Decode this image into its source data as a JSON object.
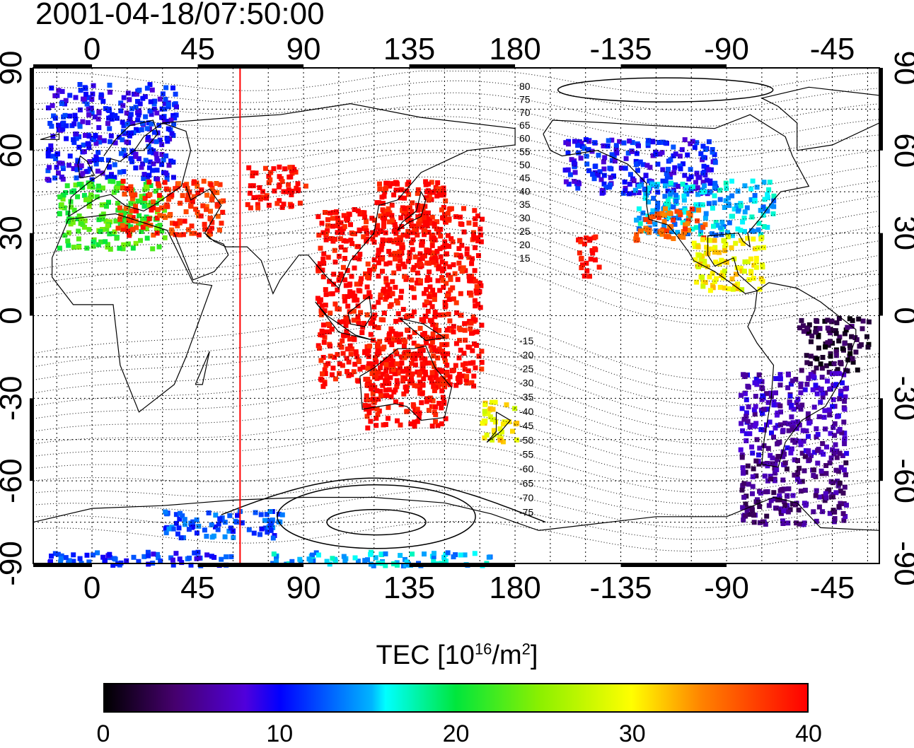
{
  "timestamp": "2001-04-18/07:50:00",
  "axes": {
    "lon_ticks_top": [
      "0",
      "45",
      "90",
      "135",
      "180",
      "-135",
      "-90",
      "-45"
    ],
    "lon_ticks_bottom": [
      "0",
      "45",
      "90",
      "135",
      "180",
      "-135",
      "-90",
      "-45"
    ],
    "lat_ticks_left": [
      "90",
      "60",
      "30",
      "0",
      "-30",
      "-60",
      "-90"
    ],
    "lat_ticks_right": [
      "90",
      "60",
      "30",
      "0",
      "-30",
      "-60",
      "-90"
    ]
  },
  "magnetic_latitude_labels": [
    "80",
    "75",
    "70",
    "65",
    "60",
    "55",
    "50",
    "45",
    "40",
    "35",
    "30",
    "25",
    "20",
    "15",
    "-15",
    "-20",
    "-25",
    "-30",
    "-35",
    "-40",
    "-45",
    "-50",
    "-55",
    "-60",
    "-65",
    "-70",
    "-75"
  ],
  "colorbar": {
    "title_main": "TEC  [10",
    "title_exp1": "16",
    "title_mid": "/m",
    "title_exp2": "2",
    "title_end": "]",
    "ticks": [
      "0",
      "10",
      "20",
      "30",
      "40"
    ],
    "range": [
      0,
      40
    ],
    "colormap": "rainbow (black-purple-blue-cyan-green-yellow-orange-red)"
  },
  "marker_line": {
    "longitude": 63,
    "color": "#ff0000"
  },
  "colors": {
    "frame": "#000000",
    "grid": "#000000",
    "colorbar_high": "#ff0000",
    "colorbar_low": "#000000"
  },
  "chart_data": {
    "type": "heatmap",
    "title": "2001-04-18/07:50:00",
    "xlabel": "",
    "ylabel": "",
    "colorbar_label": "TEC [10^16/m^2]",
    "xlim": [
      -25,
      335
    ],
    "ylim": [
      -90,
      90
    ],
    "value_range": [
      0,
      40
    ],
    "grid": true,
    "regions": [
      {
        "lon": [
          -20,
          35
        ],
        "lat": [
          50,
          85
        ],
        "tec": 10
      },
      {
        "lon": [
          -15,
          30
        ],
        "lat": [
          25,
          50
        ],
        "tec": 22
      },
      {
        "lon": [
          10,
          55
        ],
        "lat": [
          30,
          50
        ],
        "tec": 38
      },
      {
        "lon": [
          65,
          90
        ],
        "lat": [
          40,
          55
        ],
        "tec": 40
      },
      {
        "lon": [
          120,
          150
        ],
        "lat": [
          20,
          50
        ],
        "tec": 40
      },
      {
        "lon": [
          95,
          165
        ],
        "lat": [
          -25,
          40
        ],
        "tec": 40
      },
      {
        "lon": [
          115,
          150
        ],
        "lat": [
          -40,
          -10
        ],
        "tec": 40
      },
      {
        "lon": [
          165,
          180
        ],
        "lat": [
          -45,
          -30
        ],
        "tec": 30
      },
      {
        "lon": [
          200,
          265
        ],
        "lat": [
          45,
          65
        ],
        "tec": 10
      },
      {
        "lon": [
          230,
          290
        ],
        "lat": [
          30,
          50
        ],
        "tec": 15
      },
      {
        "lon": [
          230,
          260
        ],
        "lat": [
          28,
          40
        ],
        "tec": 36
      },
      {
        "lon": [
          255,
          285
        ],
        "lat": [
          10,
          30
        ],
        "tec": 30
      },
      {
        "lon": [
          205,
          215
        ],
        "lat": [
          15,
          30
        ],
        "tec": 40
      },
      {
        "lon": [
          300,
          330
        ],
        "lat": [
          -20,
          0
        ],
        "tec": 2
      },
      {
        "lon": [
          275,
          320
        ],
        "lat": [
          -50,
          -20
        ],
        "tec": 7
      },
      {
        "lon": [
          275,
          320
        ],
        "lat": [
          -75,
          -50
        ],
        "tec": 5
      },
      {
        "lon": [
          -20,
          60
        ],
        "lat": [
          -90,
          -85
        ],
        "tec": 11
      },
      {
        "lon": [
          75,
          170
        ],
        "lat": [
          -90,
          -85
        ],
        "tec": 15
      },
      {
        "lon": [
          30,
          80
        ],
        "lat": [
          -80,
          -70
        ],
        "tec": 12
      }
    ]
  }
}
